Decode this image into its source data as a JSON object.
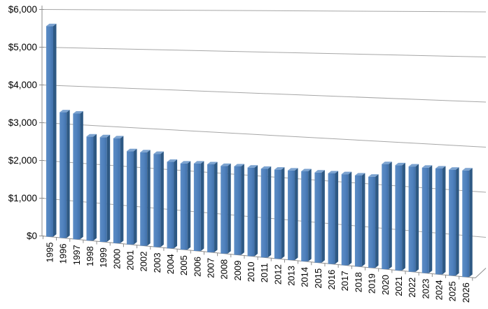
{
  "chart_data": {
    "type": "bar",
    "projection": "3d",
    "title": "",
    "xlabel": "",
    "ylabel": "",
    "legend": "none",
    "categories": [
      "1995",
      "1996",
      "1997",
      "1998",
      "1999",
      "2000",
      "2001",
      "2002",
      "2003",
      "2004",
      "2005",
      "2006",
      "2007",
      "2008",
      "2009",
      "2010",
      "2011",
      "2012",
      "2013",
      "2014",
      "2015",
      "2016",
      "2017",
      "2018",
      "2019",
      "2020",
      "2021",
      "2022",
      "2023",
      "2024",
      "2025",
      "2026"
    ],
    "values": [
      5560,
      3300,
      3280,
      2700,
      2700,
      2690,
      2380,
      2370,
      2350,
      2170,
      2150,
      2170,
      2170,
      2150,
      2160,
      2150,
      2140,
      2140,
      2140,
      2140,
      2130,
      2130,
      2130,
      2120,
      2110,
      2420,
      2410,
      2400,
      2390,
      2390,
      2380,
      2380
    ],
    "value_format": "$#,##0",
    "y_axis": {
      "min": 0,
      "max": 6000,
      "step": 1000,
      "tick_labels": [
        "$0",
        "$1,000",
        "$2,000",
        "$3,000",
        "$4,000",
        "$5,000",
        "$6,000"
      ]
    },
    "x_axis": {
      "tick_label_rotation_deg": 90
    },
    "grid": "horizontal",
    "colors": {
      "bar_front": "#4F81BD",
      "bar_front_light": "#5C8CC5",
      "bar_front_dark": "#4170A9",
      "bar_side": "#2E5984",
      "bar_top": "#7CA3D0",
      "gridline": "#A6A6A6",
      "axis": "#8C8C8C",
      "text": "#000000",
      "background": "#FFFFFF"
    }
  }
}
